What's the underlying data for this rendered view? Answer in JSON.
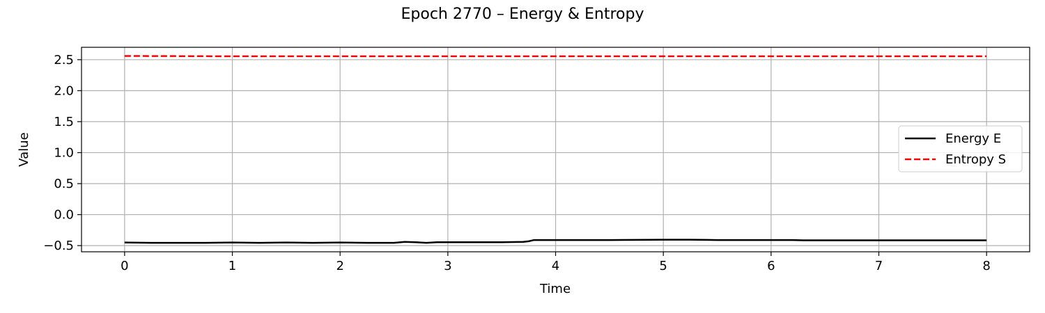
{
  "chart_data": {
    "type": "line",
    "title": "Epoch 2770 – Energy & Entropy",
    "xlabel": "Time",
    "ylabel": "Value",
    "xlim": [
      -0.4,
      8.4
    ],
    "ylim": [
      -0.6,
      2.7
    ],
    "xticks": [
      0,
      1,
      2,
      3,
      4,
      5,
      6,
      7,
      8
    ],
    "xtick_labels": [
      "0",
      "1",
      "2",
      "3",
      "4",
      "5",
      "6",
      "7",
      "8"
    ],
    "yticks": [
      -0.5,
      0.0,
      0.5,
      1.0,
      1.5,
      2.0,
      2.5
    ],
    "ytick_labels": [
      "−0.5",
      "0.0",
      "0.5",
      "1.0",
      "1.5",
      "2.0",
      "2.5"
    ],
    "grid": true,
    "legend_position": "right",
    "series": [
      {
        "name": "Energy E",
        "color": "#000000",
        "style": "solid",
        "x": [
          0,
          0.25,
          0.5,
          0.75,
          1.0,
          1.25,
          1.5,
          1.75,
          2.0,
          2.25,
          2.5,
          2.6,
          2.7,
          2.8,
          2.9,
          3.0,
          3.25,
          3.5,
          3.7,
          3.75,
          3.8,
          4.0,
          4.5,
          5.0,
          5.25,
          5.5,
          6.0,
          6.2,
          6.3,
          6.5,
          7.0,
          7.25,
          7.5,
          8.0
        ],
        "y": [
          -0.45,
          -0.455,
          -0.455,
          -0.455,
          -0.45,
          -0.455,
          -0.45,
          -0.455,
          -0.45,
          -0.455,
          -0.455,
          -0.44,
          -0.445,
          -0.455,
          -0.445,
          -0.445,
          -0.445,
          -0.445,
          -0.44,
          -0.43,
          -0.41,
          -0.41,
          -0.41,
          -0.405,
          -0.405,
          -0.41,
          -0.41,
          -0.41,
          -0.415,
          -0.415,
          -0.415,
          -0.415,
          -0.415,
          -0.415
        ]
      },
      {
        "name": "Entropy S",
        "color": "#ff0000",
        "style": "dashed",
        "x": [
          0,
          1,
          2,
          3,
          4,
          5,
          6,
          7,
          8
        ],
        "y": [
          2.56,
          2.555,
          2.555,
          2.555,
          2.555,
          2.555,
          2.555,
          2.556,
          2.556
        ]
      }
    ]
  }
}
